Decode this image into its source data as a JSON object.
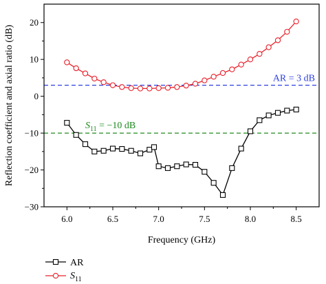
{
  "chart_data": {
    "type": "line",
    "xlabel": "Frequency (GHz)",
    "ylabel": "Reflection coefficient and axial ratio (dB)",
    "xlim": [
      5.75,
      8.75
    ],
    "ylim": [
      -30,
      25
    ],
    "xticks": [
      "6.0",
      "6.5",
      "7.0",
      "7.5",
      "8.0",
      "8.5"
    ],
    "yticks": [
      "20",
      "10",
      "0",
      "−10",
      "−20",
      "−30"
    ],
    "grid": false,
    "legend_position": "bottom-left, below plot",
    "series": [
      {
        "name": "AR",
        "color": "#000000",
        "marker": "square",
        "x": [
          6.0,
          6.1,
          6.2,
          6.3,
          6.4,
          6.5,
          6.6,
          6.7,
          6.8,
          6.9,
          6.95,
          7.0,
          7.1,
          7.2,
          7.3,
          7.4,
          7.5,
          7.6,
          7.7,
          7.8,
          7.9,
          8.0,
          8.1,
          8.2,
          8.3,
          8.4,
          8.5
        ],
        "y": [
          -7.2,
          -10.5,
          -13.0,
          -15.0,
          -14.8,
          -14.2,
          -14.3,
          -14.8,
          -15.5,
          -14.5,
          -13.8,
          -19.0,
          -19.5,
          -19.0,
          -18.5,
          -18.6,
          -20.5,
          -23.5,
          -26.8,
          -19.5,
          -14.2,
          -9.5,
          -6.5,
          -5.2,
          -4.5,
          -3.9,
          -3.6
        ]
      },
      {
        "name": "S11",
        "color": "#e8202a",
        "marker": "circle",
        "x": [
          6.0,
          6.1,
          6.2,
          6.3,
          6.4,
          6.5,
          6.6,
          6.7,
          6.8,
          6.9,
          7.0,
          7.1,
          7.2,
          7.3,
          7.4,
          7.5,
          7.6,
          7.7,
          7.8,
          7.9,
          8.0,
          8.1,
          8.2,
          8.3,
          8.4,
          8.5
        ],
        "y": [
          9.2,
          7.6,
          6.2,
          4.8,
          3.8,
          3.0,
          2.5,
          2.2,
          2.1,
          2.1,
          2.2,
          2.3,
          2.5,
          2.9,
          3.4,
          4.3,
          5.3,
          6.3,
          7.3,
          8.6,
          10.0,
          11.5,
          13.3,
          15.2,
          17.5,
          20.3
        ]
      }
    ],
    "reference_lines": [
      {
        "label": "AR = 3 dB",
        "y": 3,
        "color": "#2b3fe0",
        "style": "dashed"
      },
      {
        "label_main": "S",
        "label_sub": "11",
        "label_rest": " = −10 dB",
        "y": -10,
        "color": "#1f8a1f",
        "style": "dashed"
      }
    ],
    "legend": [
      {
        "label_main": "AR",
        "label_sub": "",
        "series": "AR"
      },
      {
        "label_main": "S",
        "label_sub": "11",
        "series": "S11"
      }
    ]
  }
}
